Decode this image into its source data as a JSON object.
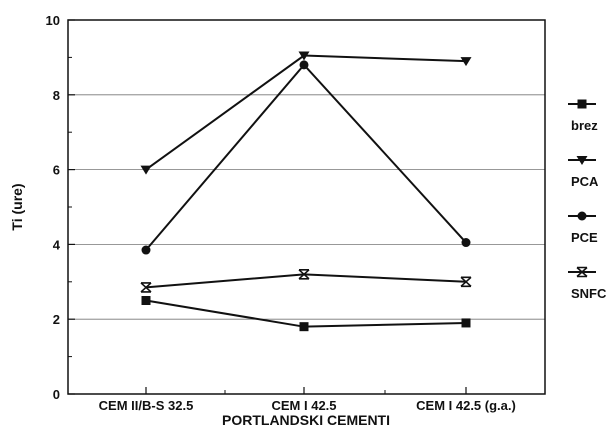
{
  "chart_data": {
    "type": "line",
    "title": "",
    "xlabel": "PORTLANDSKI CEMENTI",
    "ylabel": "Ti (ure)",
    "categories": [
      "CEM II/B-S 32.5",
      "CEM I 42.5",
      "CEM I 42.5 (g.a.)"
    ],
    "ylim": [
      0,
      10
    ],
    "yticks": [
      0,
      2,
      4,
      6,
      8,
      10
    ],
    "grid": true,
    "legend_position": "right",
    "series": [
      {
        "name": "brez",
        "marker": "square",
        "values": [
          2.5,
          1.8,
          1.9
        ]
      },
      {
        "name": "PCA",
        "marker": "triangle-down",
        "values": [
          6.0,
          9.05,
          8.9
        ]
      },
      {
        "name": "PCE",
        "marker": "circle",
        "values": [
          3.85,
          8.8,
          4.05
        ]
      },
      {
        "name": "SNFC",
        "marker": "x-bar",
        "values": [
          2.85,
          3.2,
          3.0
        ]
      }
    ]
  }
}
